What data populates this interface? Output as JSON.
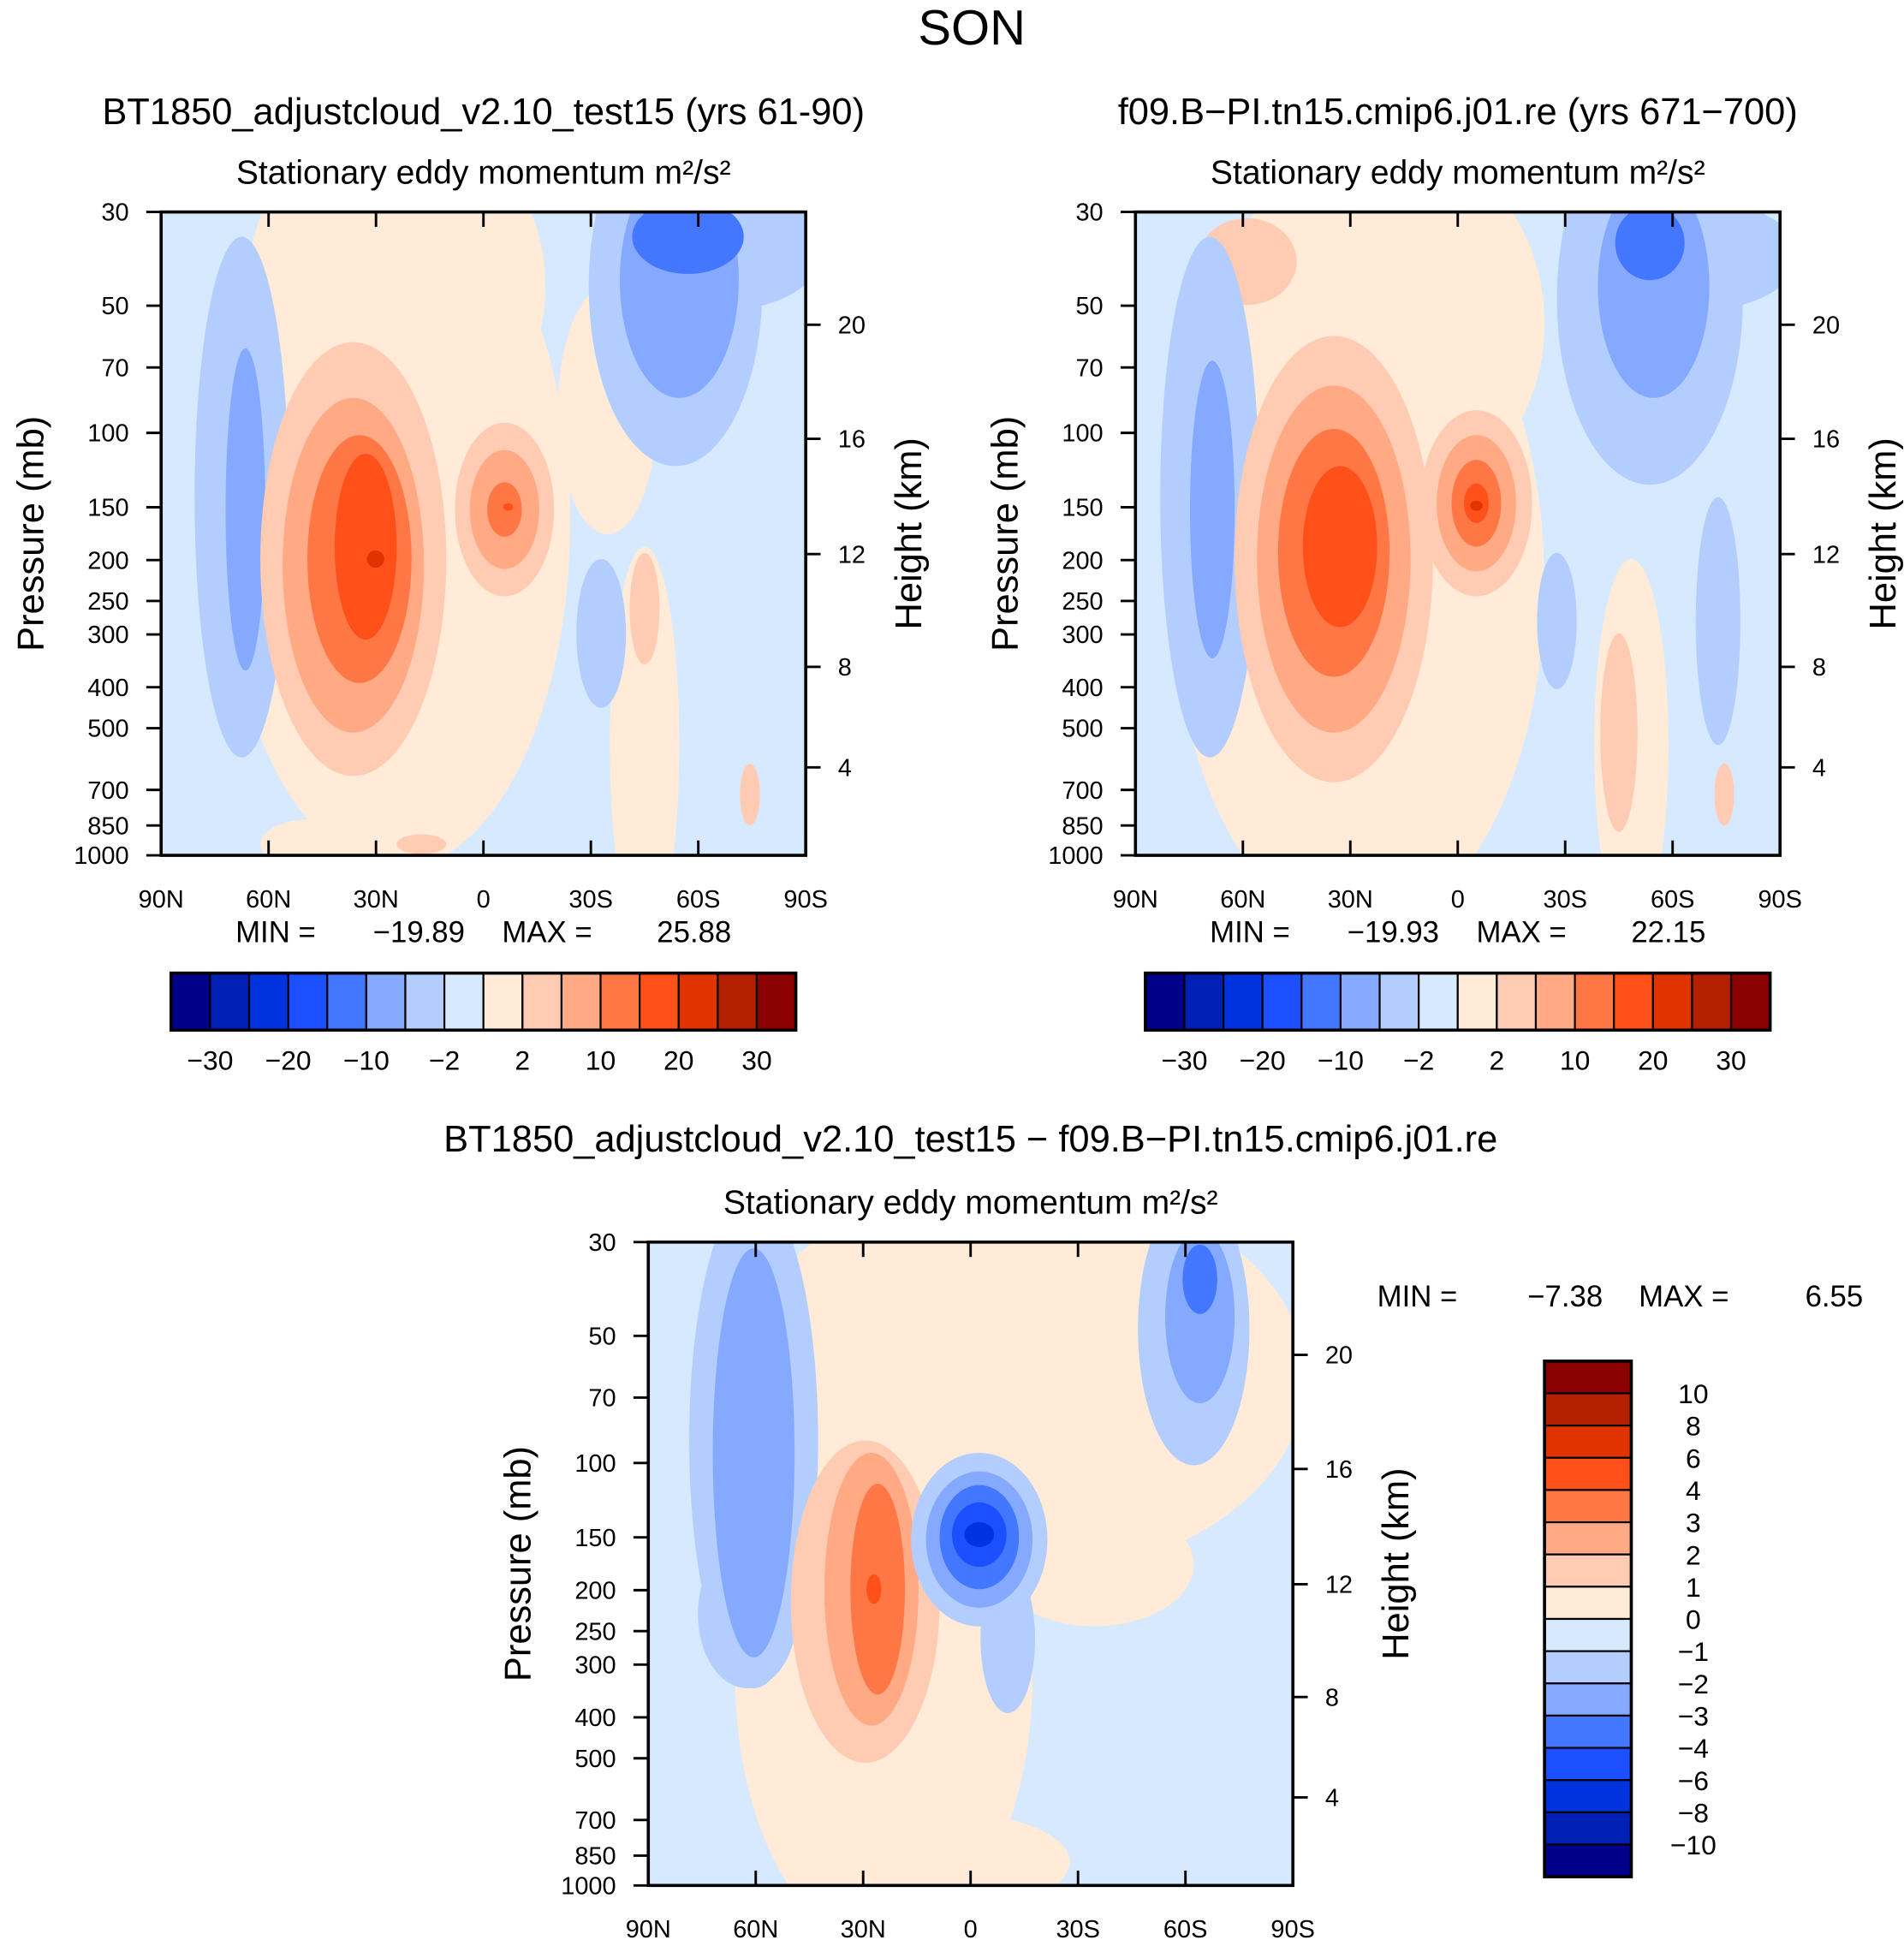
{
  "figure": {
    "title": "SON"
  },
  "chart_data": [
    {
      "type": "contour",
      "title": "BT1850_adjustcloud_v2.10_test15 (yrs 61-90)",
      "subtitle": "Stationary eddy momentum",
      "units": "m²/s²",
      "ylabel": "Pressure (mb)",
      "ylabel_right": "Height (km)",
      "x_ticks": [
        "90N",
        "60N",
        "30N",
        "0",
        "30S",
        "60S",
        "90S"
      ],
      "y_ticks": [
        "30",
        "50",
        "70",
        "100",
        "150",
        "200",
        "250",
        "300",
        "400",
        "500",
        "700",
        "850",
        "1000"
      ],
      "y_ticks_right": [
        "20",
        "16",
        "12",
        "8",
        "4"
      ],
      "min_label": "MIN =",
      "min": "−19.89",
      "max_label": "MAX =",
      "max": "25.88",
      "colorbar_labels": [
        "−30",
        "−20",
        "−10",
        "−2",
        "2",
        "10",
        "20",
        "30"
      ]
    },
    {
      "type": "contour",
      "title": "f09.B−PI.tn15.cmip6.j01.re (yrs 671−700)",
      "subtitle": "Stationary eddy momentum",
      "units": "m²/s²",
      "ylabel": "Pressure (mb)",
      "ylabel_right": "Height (km)",
      "x_ticks": [
        "90N",
        "60N",
        "30N",
        "0",
        "30S",
        "60S",
        "90S"
      ],
      "y_ticks": [
        "30",
        "50",
        "70",
        "100",
        "150",
        "200",
        "250",
        "300",
        "400",
        "500",
        "700",
        "850",
        "1000"
      ],
      "y_ticks_right": [
        "20",
        "16",
        "12",
        "8",
        "4"
      ],
      "min_label": "MIN =",
      "min": "−19.93",
      "max_label": "MAX =",
      "max": "22.15",
      "colorbar_labels": [
        "−30",
        "−20",
        "−10",
        "−2",
        "2",
        "10",
        "20",
        "30"
      ]
    },
    {
      "type": "contour",
      "title": "BT1850_adjustcloud_v2.10_test15 − f09.B−PI.tn15.cmip6.j01.re",
      "subtitle": "Stationary eddy momentum",
      "units": "m²/s²",
      "ylabel": "Pressure (mb)",
      "ylabel_right": "Height (km)",
      "x_ticks": [
        "90N",
        "60N",
        "30N",
        "0",
        "30S",
        "60S",
        "90S"
      ],
      "y_ticks": [
        "30",
        "50",
        "70",
        "100",
        "150",
        "200",
        "250",
        "300",
        "400",
        "500",
        "700",
        "850",
        "1000"
      ],
      "y_ticks_right": [
        "20",
        "16",
        "12",
        "8",
        "4"
      ],
      "min_label": "MIN =",
      "min": "−7.38",
      "max_label": "MAX =",
      "max": "6.55",
      "colorbar_labels": [
        "10",
        "8",
        "6",
        "4",
        "3",
        "2",
        "1",
        "0",
        "−1",
        "−2",
        "−3",
        "−4",
        "−6",
        "−8",
        "−10"
      ]
    }
  ],
  "palette": [
    "#00008b",
    "#001fb4",
    "#0033e0",
    "#1a50ff",
    "#4477ff",
    "#84a9ff",
    "#b3cdff",
    "#d6e9ff",
    "#ffebd8",
    "#ffccb3",
    "#ffaa84",
    "#ff7744",
    "#ff501a",
    "#e03300",
    "#b41f00",
    "#8b0000"
  ]
}
